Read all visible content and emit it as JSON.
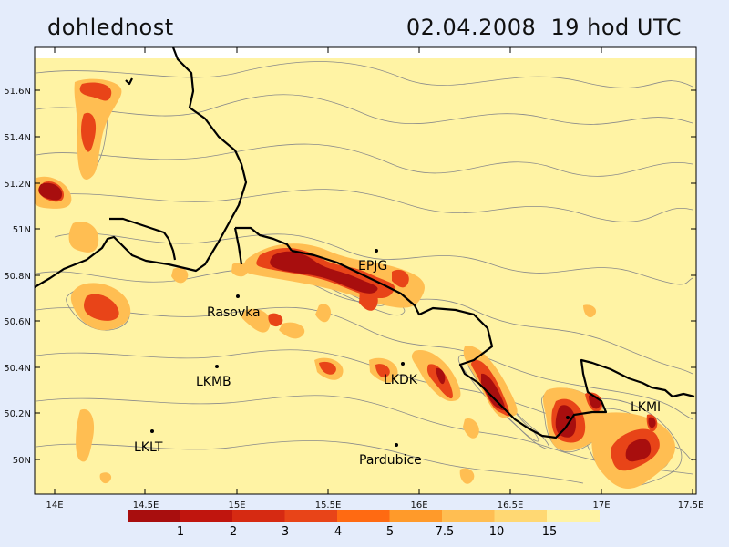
{
  "title": {
    "left": "dohlednost",
    "right": "02.04.2008  19 hod UTC"
  },
  "colors": {
    "background": "#e4ecfb",
    "map_base": "#fff3a4",
    "contour": "#8a8a8a",
    "border": "#000000"
  },
  "axes": {
    "lat_labels": [
      "51.6N",
      "51.4N",
      "51.2N",
      "51N",
      "50.8N",
      "50.6N",
      "50.4N",
      "50.2N",
      "50N"
    ],
    "lon_labels": [
      "14E",
      "14.5E",
      "15E",
      "15.5E",
      "16E",
      "16.5E",
      "17E",
      "17.5E"
    ]
  },
  "places": [
    {
      "name": "EPJG"
    },
    {
      "name": "Rasovka"
    },
    {
      "name": "LKMB"
    },
    {
      "name": "LKDK"
    },
    {
      "name": "LKMI"
    },
    {
      "name": "LKLT"
    },
    {
      "name": "Pardubice"
    }
  ],
  "legend": {
    "colors": [
      "#a80e0e",
      "#c0150e",
      "#d62a12",
      "#e84418",
      "#ff6a12",
      "#ff9a2a",
      "#ffbe52",
      "#ffd873",
      "#fff3a4"
    ],
    "labels": [
      "1",
      "2",
      "3",
      "4",
      "5",
      "7.5",
      "10",
      "15"
    ]
  }
}
